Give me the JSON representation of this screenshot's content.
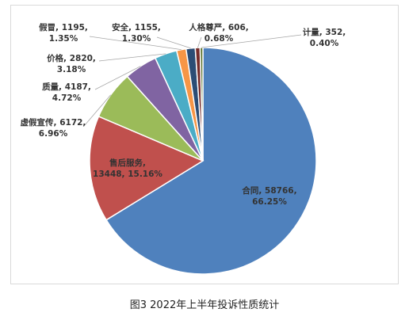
{
  "caption": "图3  2022年上半年投诉性质统计",
  "chart_data": {
    "type": "pie",
    "title": "",
    "slices": [
      {
        "name": "合同",
        "value": 58766,
        "percent": "66.25%",
        "color": "#4f81bd"
      },
      {
        "name": "售后服务",
        "value": 13448,
        "percent": "15.16%",
        "color": "#c0504d"
      },
      {
        "name": "虚假宣传",
        "value": 6172,
        "percent": "6.96%",
        "color": "#9bbb59"
      },
      {
        "name": "质量",
        "value": 4187,
        "percent": "4.72%",
        "color": "#8064a2"
      },
      {
        "name": "价格",
        "value": 2820,
        "percent": "3.18%",
        "color": "#4bacc6"
      },
      {
        "name": "假冒",
        "value": 1195,
        "percent": "1.35%",
        "color": "#f79646"
      },
      {
        "name": "安全",
        "value": 1155,
        "percent": "1.30%",
        "color": "#2c4d75"
      },
      {
        "name": "人格尊严",
        "value": 606,
        "percent": "0.68%",
        "color": "#772c2a"
      },
      {
        "name": "计量",
        "value": 352,
        "percent": "0.40%",
        "color": "#5f7530"
      }
    ],
    "labels": [
      {
        "line1": "合同, 58766,",
        "line2": "66.25%"
      },
      {
        "line1": "售后服务,",
        "line2": "13448, 15.16%"
      },
      {
        "line1": "虚假宣传, 6172,",
        "line2": "6.96%"
      },
      {
        "line1": "质量, 4187,",
        "line2": "4.72%"
      },
      {
        "line1": "价格, 2820,",
        "line2": "3.18%"
      },
      {
        "line1": "假冒, 1195,",
        "line2": "1.35%"
      },
      {
        "line1": "安全, 1155,",
        "line2": "1.30%"
      },
      {
        "line1": "人格尊严, 606,",
        "line2": "0.68%"
      },
      {
        "line1": "计量, 352,",
        "line2": "0.40%"
      }
    ]
  }
}
